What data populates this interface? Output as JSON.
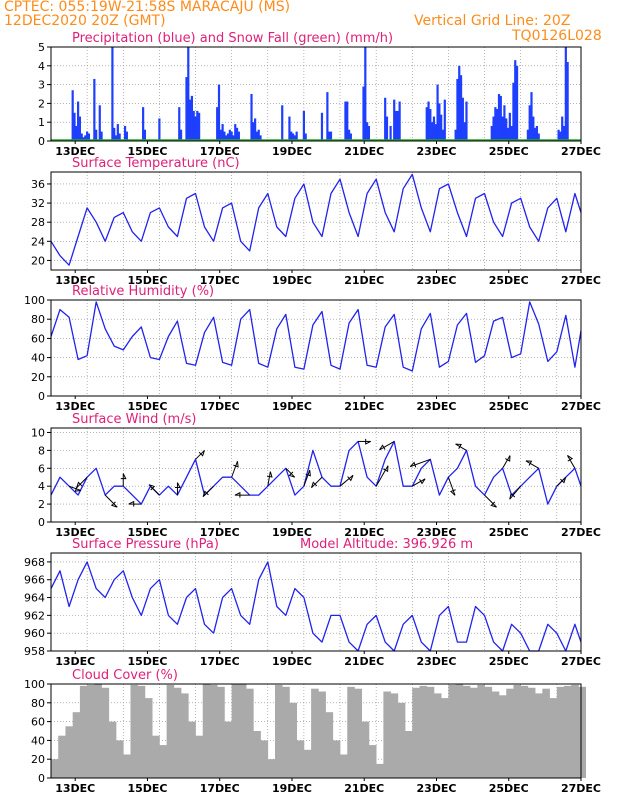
{
  "header": {
    "station": "CPTEC:   055:19W-21:58S   MARACAJU (MS)",
    "run": "12DEC2020 20Z (GMT)",
    "grid_note": "Vertical Grid Line: 20Z",
    "model_id": "TQ0126L028"
  },
  "colors": {
    "header": "#ff8c1a",
    "title": "#e0207a",
    "line": "#2222ee",
    "bar": "#1f3fff",
    "snow": "#22aa22",
    "cloud": "#aaaaaa",
    "arrow": "#000000",
    "grid": "#888888"
  },
  "x_axis": {
    "day_labels": [
      "13DEC",
      "15DEC",
      "17DEC",
      "19DEC",
      "21DEC",
      "23DEC",
      "25DEC",
      "27DEC"
    ],
    "range_days": [
      0,
      14.67
    ],
    "first_label_offset_days": 0.67
  },
  "chart_data": [
    {
      "id": "precip",
      "type": "bar",
      "title": "Precipitation (blue) and Snow Fall (green) (mm/h)",
      "ylim": [
        0,
        5
      ],
      "yticks": [
        0,
        1,
        2,
        3,
        4,
        5
      ],
      "grid": true,
      "x": [
        0.6,
        0.65,
        0.7,
        0.75,
        0.8,
        0.85,
        0.9,
        0.95,
        1.0,
        1.05,
        1.2,
        1.25,
        1.35,
        1.4,
        1.7,
        1.75,
        1.8,
        1.85,
        1.9,
        2.05,
        2.1,
        2.55,
        2.6,
        3.0,
        3.55,
        3.6,
        3.75,
        3.8,
        3.85,
        3.9,
        3.95,
        4.0,
        4.05,
        4.1,
        4.6,
        4.65,
        4.7,
        4.75,
        4.8,
        4.85,
        4.9,
        4.95,
        5.0,
        5.05,
        5.1,
        5.15,
        5.2,
        5.55,
        5.6,
        5.65,
        5.7,
        5.75,
        5.8,
        6.4,
        6.6,
        6.65,
        6.7,
        6.75,
        6.8,
        7.0,
        7.05,
        7.5,
        7.65,
        7.7,
        7.75,
        8.15,
        8.2,
        8.25,
        8.3,
        8.65,
        8.7,
        8.75,
        8.8,
        9.25,
        9.3,
        9.4,
        9.5,
        9.55,
        9.6,
        9.65,
        10.4,
        10.45,
        10.5,
        10.55,
        10.6,
        10.65,
        10.7,
        10.75,
        10.8,
        10.85,
        10.9,
        11.2,
        11.25,
        11.3,
        11.35,
        11.4,
        11.45,
        11.5,
        12.2,
        12.25,
        12.3,
        12.35,
        12.4,
        12.45,
        12.5,
        12.55,
        12.6,
        12.65,
        12.7,
        12.75,
        12.8,
        12.85,
        12.9,
        13.2,
        13.25,
        13.3,
        13.35,
        13.4,
        13.45,
        13.5,
        14.05,
        14.1,
        14.15,
        14.2,
        14.25,
        14.3
      ],
      "values": [
        2.7,
        1.5,
        0.8,
        2.1,
        1.3,
        0.4,
        0.2,
        0.3,
        0.5,
        0.4,
        3.3,
        0.6,
        1.9,
        0.5,
        5.0,
        0.7,
        0.3,
        0.9,
        0.4,
        0.8,
        0.5,
        1.8,
        0.6,
        1.2,
        1.8,
        0.6,
        3.4,
        5.0,
        2.2,
        2.4,
        1.6,
        1.3,
        1.6,
        1.5,
        1.8,
        3.0,
        0.6,
        0.9,
        0.5,
        0.3,
        0.4,
        0.6,
        0.5,
        0.3,
        0.9,
        0.7,
        0.5,
        2.5,
        1.0,
        1.2,
        0.5,
        0.6,
        0.3,
        1.9,
        1.3,
        0.5,
        0.4,
        0.3,
        0.5,
        1.6,
        0.4,
        1.5,
        2.6,
        0.5,
        0.5,
        2.1,
        2.1,
        0.6,
        0.4,
        2.9,
        5.0,
        1.0,
        0.8,
        2.3,
        1.3,
        0.8,
        2.2,
        1.6,
        1.6,
        2.1,
        1.8,
        2.1,
        1.7,
        1.0,
        1.3,
        0.9,
        3.0,
        2.0,
        1.4,
        0.6,
        2.2,
        0.6,
        3.3,
        4.0,
        3.5,
        2.3,
        1.0,
        2.1,
        0.8,
        1.3,
        1.8,
        1.7,
        2.5,
        2.4,
        1.3,
        1.9,
        1.2,
        0.7,
        1.5,
        0.8,
        3.1,
        4.3,
        4.0,
        0.6,
        1.9,
        2.6,
        1.3,
        0.7,
        0.8,
        0.4,
        0.6,
        0.5,
        1.3,
        0.8,
        5.0,
        4.2
      ]
    },
    {
      "id": "temperature",
      "type": "line",
      "title": "Surface Temperature (nC)",
      "ylim": [
        18,
        38.5
      ],
      "yticks": [
        20,
        24,
        28,
        32,
        36
      ],
      "grid": true,
      "x": [
        0,
        0.25,
        0.5,
        0.75,
        1.0,
        1.25,
        1.5,
        1.75,
        2.0,
        2.25,
        2.5,
        2.75,
        3.0,
        3.25,
        3.5,
        3.75,
        4.0,
        4.25,
        4.5,
        4.75,
        5.0,
        5.25,
        5.5,
        5.75,
        6.0,
        6.25,
        6.5,
        6.75,
        7.0,
        7.25,
        7.5,
        7.75,
        8.0,
        8.25,
        8.5,
        8.75,
        9.0,
        9.25,
        9.5,
        9.75,
        10.0,
        10.25,
        10.5,
        10.75,
        11.0,
        11.25,
        11.5,
        11.75,
        12.0,
        12.25,
        12.5,
        12.75,
        13.0,
        13.25,
        13.5,
        13.75,
        14.0,
        14.25,
        14.5,
        14.67
      ],
      "values": [
        24,
        21,
        19,
        25,
        31,
        28,
        24,
        29,
        30,
        26,
        24,
        30,
        31,
        27,
        25,
        33,
        34,
        27,
        24,
        31,
        32,
        24,
        22,
        31,
        34,
        27,
        25,
        33,
        36,
        28,
        25,
        34,
        37,
        30,
        25,
        34,
        37,
        30,
        26,
        35,
        38,
        31,
        26,
        35,
        36,
        30,
        25,
        33,
        34,
        28,
        25,
        32,
        33,
        27,
        24,
        31,
        33,
        26,
        34,
        30
      ]
    },
    {
      "id": "humidity",
      "type": "line",
      "title": "Relative Humidity (%)",
      "ylim": [
        0,
        100
      ],
      "yticks": [
        0,
        20,
        40,
        60,
        80,
        100
      ],
      "grid": true,
      "x": [
        0,
        0.25,
        0.5,
        0.75,
        1.0,
        1.25,
        1.5,
        1.75,
        2.0,
        2.25,
        2.5,
        2.75,
        3.0,
        3.25,
        3.5,
        3.75,
        4.0,
        4.25,
        4.5,
        4.75,
        5.0,
        5.25,
        5.5,
        5.75,
        6.0,
        6.25,
        6.5,
        6.75,
        7.0,
        7.25,
        7.5,
        7.75,
        8.0,
        8.25,
        8.5,
        8.75,
        9.0,
        9.25,
        9.5,
        9.75,
        10.0,
        10.25,
        10.5,
        10.75,
        11.0,
        11.25,
        11.5,
        11.75,
        12.0,
        12.25,
        12.5,
        12.75,
        13.0,
        13.25,
        13.5,
        13.75,
        14.0,
        14.25,
        14.5,
        14.67
      ],
      "values": [
        62,
        90,
        82,
        38,
        42,
        98,
        70,
        52,
        48,
        62,
        72,
        40,
        38,
        62,
        78,
        34,
        32,
        66,
        82,
        35,
        32,
        80,
        90,
        34,
        30,
        70,
        85,
        30,
        28,
        74,
        88,
        32,
        28,
        76,
        90,
        32,
        30,
        72,
        85,
        30,
        26,
        70,
        86,
        30,
        36,
        74,
        86,
        35,
        42,
        78,
        82,
        40,
        44,
        98,
        75,
        36,
        46,
        84,
        30,
        68
      ]
    },
    {
      "id": "wind",
      "type": "line",
      "title": "Surface Wind (m/s)",
      "ylim": [
        0,
        10.5
      ],
      "yticks": [
        0,
        2,
        4,
        6,
        8,
        10
      ],
      "grid": true,
      "x": [
        0,
        0.25,
        0.5,
        0.75,
        1.0,
        1.25,
        1.5,
        1.75,
        2.0,
        2.25,
        2.5,
        2.75,
        3.0,
        3.25,
        3.5,
        3.75,
        4.0,
        4.25,
        4.5,
        4.75,
        5.0,
        5.25,
        5.5,
        5.75,
        6.0,
        6.25,
        6.5,
        6.75,
        7.0,
        7.25,
        7.5,
        7.75,
        8.0,
        8.25,
        8.5,
        8.75,
        9.0,
        9.25,
        9.5,
        9.75,
        10.0,
        10.25,
        10.5,
        10.75,
        11.0,
        11.25,
        11.5,
        11.75,
        12.0,
        12.25,
        12.5,
        12.75,
        13.0,
        13.25,
        13.5,
        13.75,
        14.0,
        14.25,
        14.5,
        14.67
      ],
      "values": [
        3,
        5,
        4,
        3,
        5,
        6,
        3,
        4,
        4,
        3,
        2,
        4,
        3,
        4,
        3,
        5,
        7,
        3,
        4,
        5,
        5,
        4,
        3,
        3,
        4,
        5,
        6,
        3,
        4,
        8,
        5,
        4,
        4,
        8,
        9,
        5,
        4,
        7,
        9,
        4,
        4,
        6,
        7,
        3,
        5,
        6,
        8,
        4,
        3,
        5,
        6,
        3,
        4,
        5,
        6,
        2,
        4,
        5,
        6,
        4
      ],
      "arrows": {
        "x": [
          0.5,
          1.0,
          1.5,
          2.0,
          2.5,
          3.0,
          3.5,
          4.0,
          4.5,
          5.0,
          5.5,
          6.0,
          6.5,
          7.0,
          7.5,
          8.0,
          8.5,
          9.0,
          9.5,
          10.0,
          10.5,
          11.0,
          11.5,
          12.0,
          12.5,
          13.0,
          13.5,
          14.0,
          14.5
        ],
        "speed": [
          3,
          4,
          5,
          3,
          3,
          4,
          3,
          3,
          4,
          5,
          4,
          4,
          3,
          5,
          4,
          5,
          3,
          8,
          5,
          4,
          7,
          6,
          3,
          5,
          4,
          5,
          4,
          3,
          4
        ],
        "dir_deg": [
          340,
          225,
          315,
          90,
          180,
          135,
          90,
          45,
          225,
          70,
          180,
          80,
          315,
          70,
          225,
          40,
          0,
          60,
          210,
          30,
          200,
          290,
          150,
          315,
          60,
          230,
          150,
          45,
          120
        ]
      }
    },
    {
      "id": "pressure",
      "type": "line",
      "title": "Surface Pressure (hPa)",
      "annotation": "Model Altitude: 396.926 m",
      "ylim": [
        958,
        969
      ],
      "yticks": [
        958,
        960,
        962,
        964,
        966,
        968
      ],
      "grid": true,
      "x": [
        0,
        0.25,
        0.5,
        0.75,
        1.0,
        1.25,
        1.5,
        1.75,
        2.0,
        2.25,
        2.5,
        2.75,
        3.0,
        3.25,
        3.5,
        3.75,
        4.0,
        4.25,
        4.5,
        4.75,
        5.0,
        5.25,
        5.5,
        5.75,
        6.0,
        6.25,
        6.5,
        6.75,
        7.0,
        7.25,
        7.5,
        7.75,
        8.0,
        8.25,
        8.5,
        8.75,
        9.0,
        9.25,
        9.5,
        9.75,
        10.0,
        10.25,
        10.5,
        10.75,
        11.0,
        11.25,
        11.5,
        11.75,
        12.0,
        12.25,
        12.5,
        12.75,
        13.0,
        13.25,
        13.5,
        13.75,
        14.0,
        14.25,
        14.5,
        14.67
      ],
      "values": [
        965,
        967,
        963,
        966,
        968,
        965,
        964,
        966,
        967,
        964,
        962,
        965,
        966,
        962,
        961,
        964,
        965,
        961,
        960,
        964,
        965,
        962,
        961,
        966,
        968,
        963,
        962,
        965,
        964,
        960,
        959,
        962,
        962,
        959,
        958,
        961,
        962,
        959,
        958,
        961,
        962,
        959,
        958,
        962,
        963,
        959,
        959,
        963,
        962,
        959,
        958,
        961,
        960,
        958,
        958,
        961,
        960,
        958,
        961,
        959
      ]
    },
    {
      "id": "cloud",
      "type": "bar",
      "title": "Cloud Cover (%)",
      "ylim": [
        0,
        100
      ],
      "yticks": [
        0,
        20,
        40,
        60,
        80,
        100
      ],
      "grid": true,
      "x": [
        0,
        0.2,
        0.4,
        0.6,
        0.8,
        1.0,
        1.2,
        1.4,
        1.6,
        1.8,
        2.0,
        2.2,
        2.4,
        2.6,
        2.8,
        3.0,
        3.2,
        3.4,
        3.6,
        3.8,
        4.0,
        4.2,
        4.4,
        4.6,
        4.8,
        5.0,
        5.2,
        5.4,
        5.6,
        5.8,
        6.0,
        6.2,
        6.4,
        6.6,
        6.8,
        7.0,
        7.2,
        7.4,
        7.6,
        7.8,
        8.0,
        8.2,
        8.4,
        8.6,
        8.8,
        9.0,
        9.2,
        9.4,
        9.6,
        9.8,
        10.0,
        10.2,
        10.4,
        10.6,
        10.8,
        11.0,
        11.2,
        11.4,
        11.6,
        11.8,
        12.0,
        12.2,
        12.4,
        12.6,
        12.8,
        13.0,
        13.2,
        13.4,
        13.6,
        13.8,
        14.0,
        14.2,
        14.4,
        14.6
      ],
      "values": [
        20,
        45,
        55,
        70,
        98,
        99,
        100,
        96,
        60,
        40,
        25,
        99,
        98,
        85,
        45,
        35,
        99,
        96,
        90,
        60,
        45,
        100,
        99,
        97,
        60,
        100,
        100,
        95,
        50,
        40,
        20,
        99,
        97,
        80,
        40,
        30,
        95,
        92,
        70,
        40,
        25,
        97,
        95,
        60,
        35,
        15,
        92,
        90,
        80,
        50,
        96,
        98,
        97,
        90,
        85,
        99,
        100,
        98,
        96,
        99,
        97,
        92,
        88,
        95,
        99,
        98,
        96,
        90,
        95,
        85,
        97,
        98,
        99,
        97
      ]
    }
  ]
}
